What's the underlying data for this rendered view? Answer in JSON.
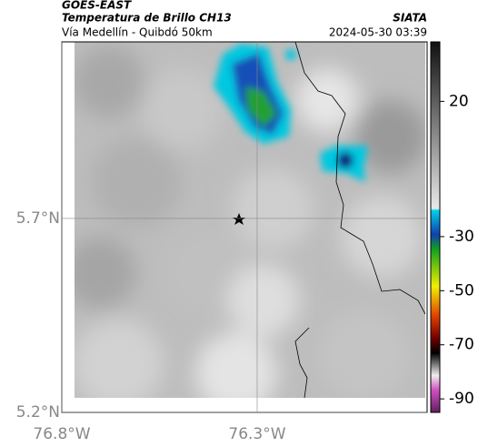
{
  "header": {
    "title": "GOES-EAST",
    "subtitle": "Temperatura de Brillo CH13",
    "route": "Vía Medellín - Quibdó 50km",
    "source": "SIATA",
    "timestamp": "2024-05-30 03:39"
  },
  "map": {
    "xlim": [
      -76.8,
      -75.865
    ],
    "ylim": [
      5.2,
      6.155
    ],
    "xticks": [
      {
        "value": -76.8,
        "label": "76.8°W"
      },
      {
        "value": -76.3,
        "label": "76.3°W"
      }
    ],
    "yticks": [
      {
        "value": 5.2,
        "label": "5.2°N"
      },
      {
        "value": 5.7,
        "label": "5.7°N"
      }
    ],
    "colorbar": {
      "clim": [
        -95,
        42
      ],
      "ticks": [
        20,
        -30,
        -50,
        -70,
        -90
      ]
    }
  }
}
